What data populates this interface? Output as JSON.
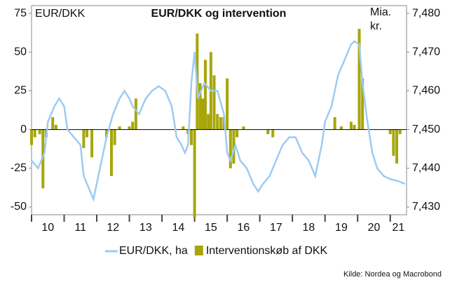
{
  "chart_data": {
    "type": "bar-line",
    "title": "EUR/DKK og intervention",
    "y_label": "EUR/DKK",
    "y2_label": "Mia. kr.",
    "source": "Kilde: Nordea og Macrobond",
    "xlim": [
      2010,
      2021.5
    ],
    "xticks": [
      {
        "value": 2010.5,
        "label": "10"
      },
      {
        "value": 2011.5,
        "label": "11"
      },
      {
        "value": 2012.5,
        "label": "12"
      },
      {
        "value": 2013.5,
        "label": "13"
      },
      {
        "value": 2014.5,
        "label": "14"
      },
      {
        "value": 2015.5,
        "label": "15"
      },
      {
        "value": 2016.5,
        "label": "16"
      },
      {
        "value": 2017.5,
        "label": "17"
      },
      {
        "value": 2018.5,
        "label": "18"
      },
      {
        "value": 2019.5,
        "label": "19"
      },
      {
        "value": 2020.5,
        "label": "20"
      },
      {
        "value": 2021.25,
        "label": "21"
      }
    ],
    "ylim": [
      -55,
      80
    ],
    "yticks": [
      -50,
      -25,
      0,
      25,
      50,
      75
    ],
    "y2lim": [
      7.428,
      7.482
    ],
    "y2ticks": [
      {
        "value": 7.43,
        "label": "7,430"
      },
      {
        "value": 7.44,
        "label": "7,440"
      },
      {
        "value": 7.45,
        "label": "7,450"
      },
      {
        "value": 7.46,
        "label": "7,460"
      },
      {
        "value": 7.47,
        "label": "7,470"
      },
      {
        "value": 7.48,
        "label": "7,480"
      }
    ],
    "series": [
      {
        "name": "EUR/DKK, ha",
        "color": "#9ecbf2",
        "type": "line",
        "axis": "y2",
        "x": [
          2010.0,
          2010.2,
          2010.4,
          2010.5,
          2010.7,
          2010.85,
          2011.0,
          2011.1,
          2011.3,
          2011.5,
          2011.6,
          2011.8,
          2011.9,
          2012.0,
          2012.15,
          2012.3,
          2012.5,
          2012.7,
          2012.85,
          2013.0,
          2013.1,
          2013.3,
          2013.5,
          2013.7,
          2013.9,
          2014.1,
          2014.3,
          2014.45,
          2014.6,
          2014.7,
          2014.8,
          2014.9,
          2015.0,
          2015.1,
          2015.3,
          2015.5,
          2015.7,
          2015.9,
          2016.0,
          2016.1,
          2016.25,
          2016.4,
          2016.6,
          2016.8,
          2016.95,
          2017.1,
          2017.3,
          2017.5,
          2017.7,
          2017.9,
          2018.1,
          2018.3,
          2018.5,
          2018.7,
          2018.9,
          2019.0,
          2019.2,
          2019.4,
          2019.6,
          2019.8,
          2019.9,
          2020.05,
          2020.15,
          2020.3,
          2020.45,
          2020.6,
          2020.8,
          2021.0,
          2021.2,
          2021.45
        ],
        "values": [
          7.442,
          7.44,
          7.444,
          7.452,
          7.456,
          7.458,
          7.456,
          7.45,
          7.448,
          7.446,
          7.438,
          7.434,
          7.432,
          7.436,
          7.442,
          7.448,
          7.454,
          7.458,
          7.46,
          7.458,
          7.456,
          7.454,
          7.458,
          7.46,
          7.4612,
          7.46,
          7.456,
          7.448,
          7.446,
          7.444,
          7.446,
          7.462,
          7.47,
          7.458,
          7.462,
          7.46,
          7.46,
          7.454,
          7.444,
          7.442,
          7.446,
          7.442,
          7.44,
          7.436,
          7.434,
          7.436,
          7.438,
          7.442,
          7.446,
          7.448,
          7.448,
          7.444,
          7.442,
          7.438,
          7.446,
          7.452,
          7.456,
          7.464,
          7.468,
          7.472,
          7.4728,
          7.472,
          7.462,
          7.452,
          7.444,
          7.44,
          7.438,
          7.4372,
          7.4368,
          7.436
        ]
      },
      {
        "name": "Interventionskøb af DKK",
        "color": "#a6a60a",
        "type": "bar",
        "axis": "y",
        "x": [
          2010.0,
          2010.1,
          2010.25,
          2010.35,
          2010.45,
          2010.65,
          2010.75,
          2011.6,
          2011.7,
          2011.85,
          2012.3,
          2012.45,
          2012.55,
          2012.7,
          2013.0,
          2013.1,
          2013.2,
          2014.65,
          2014.8,
          2014.9,
          2015.0,
          2015.08,
          2015.17,
          2015.25,
          2015.33,
          2015.42,
          2015.5,
          2015.6,
          2015.7,
          2015.8,
          2015.9,
          2016.0,
          2016.1,
          2016.2,
          2016.3,
          2016.5,
          2017.25,
          2017.4,
          2019.3,
          2019.5,
          2019.8,
          2019.9,
          2020.05,
          2020.15,
          2021.0,
          2021.1,
          2021.2,
          2021.3
        ],
        "values": [
          -10,
          -5,
          -3,
          -38,
          -5,
          8,
          3,
          -12,
          -5,
          -18,
          -5,
          -30,
          -10,
          2,
          2,
          5,
          20,
          2,
          -3,
          -10,
          -57,
          62,
          30,
          20,
          45,
          10,
          50,
          35,
          10,
          8,
          8,
          33,
          -25,
          -22,
          -5,
          2,
          -3,
          -5,
          8,
          2,
          5,
          3,
          65,
          33,
          -3,
          -17,
          -22,
          -3
        ]
      }
    ]
  }
}
